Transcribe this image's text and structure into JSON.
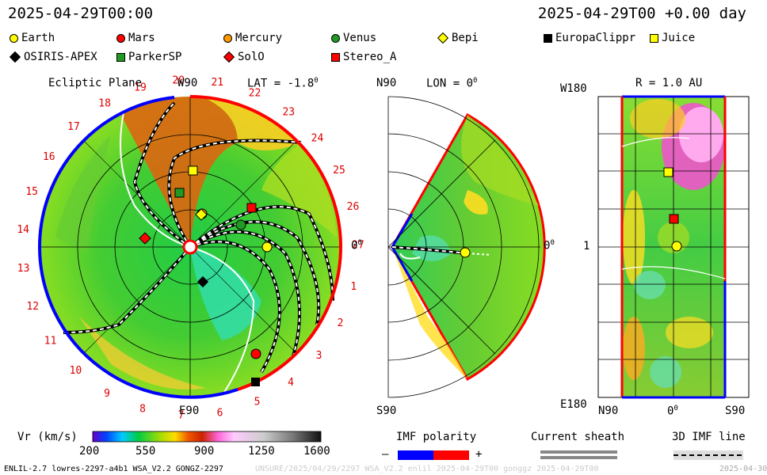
{
  "header": {
    "left_time": "2025-04-29T00:00",
    "right_time": "2025-04-29T00 +0.00 day"
  },
  "legend": [
    {
      "name": "Earth",
      "shape": "circle",
      "color": "#ffff00"
    },
    {
      "name": "Mars",
      "shape": "circle",
      "color": "#ff0000"
    },
    {
      "name": "Mercury",
      "shape": "circle",
      "color": "#ff9900"
    },
    {
      "name": "Venus",
      "shape": "circle",
      "color": "#229922"
    },
    {
      "name": "Bepi",
      "shape": "diamond",
      "color": "#ffff00"
    },
    {
      "name": "EuropaClippr",
      "shape": "square",
      "color": "#000000"
    },
    {
      "name": "Juice",
      "shape": "square",
      "color": "#ffff00"
    },
    {
      "name": "OSIRIS-APEX",
      "shape": "diamond",
      "color": "#000000"
    },
    {
      "name": "ParkerSP",
      "shape": "square",
      "color": "#229922"
    },
    {
      "name": "SolO",
      "shape": "diamond",
      "color": "#ff0000"
    },
    {
      "name": "Stereo_A",
      "shape": "square",
      "color": "#ff0000"
    }
  ],
  "ecliptic": {
    "title": "Ecliptic Plane",
    "top_label": "W90",
    "lat_label": "LAT = -1.8",
    "lat_sup": "0",
    "bottom_label": "E90",
    "right_label": "0",
    "right_sup": "0",
    "hour_labels": [
      "1",
      "2",
      "3",
      "4",
      "5",
      "6",
      "7",
      "8",
      "9",
      "10",
      "11",
      "12",
      "13",
      "14",
      "15",
      "16",
      "17",
      "18",
      "19",
      "20",
      "21",
      "22",
      "23",
      "24",
      "25",
      "26",
      "27"
    ]
  },
  "meridional": {
    "n_label": "N90",
    "lon_label": "LON = 0",
    "lon_sup": "0",
    "s_label": "S90",
    "right_label": "0",
    "right_sup": "0"
  },
  "radial": {
    "r_label": "R = 1.0 AU",
    "w_label": "W180",
    "e_label": "E180",
    "mid_label": "1",
    "x_labels": [
      "N90",
      "0",
      "S90"
    ],
    "x_sup": "0"
  },
  "colorbar": {
    "label": "Vr (km/s)",
    "ticks": [
      "200",
      "550",
      "900",
      "1250",
      "1600"
    ]
  },
  "imf": {
    "label": "IMF polarity",
    "minus": "–",
    "plus": "+",
    "neg_color": "#0000ff",
    "pos_color": "#ff0000"
  },
  "sheath": {
    "label": "Current sheath"
  },
  "imf3d": {
    "label": "3D IMF line"
  },
  "footer": {
    "model": "ENLIL-2.7 lowres-2297-a4b1 WSA_V2.2 GONGZ-2297",
    "faint": "UNSURE/2025/04/29/2297 WSA_V2.2 enlil 2025-04-29T00 gonggz 2025-04-29T00",
    "corner": "2025-04-30"
  }
}
